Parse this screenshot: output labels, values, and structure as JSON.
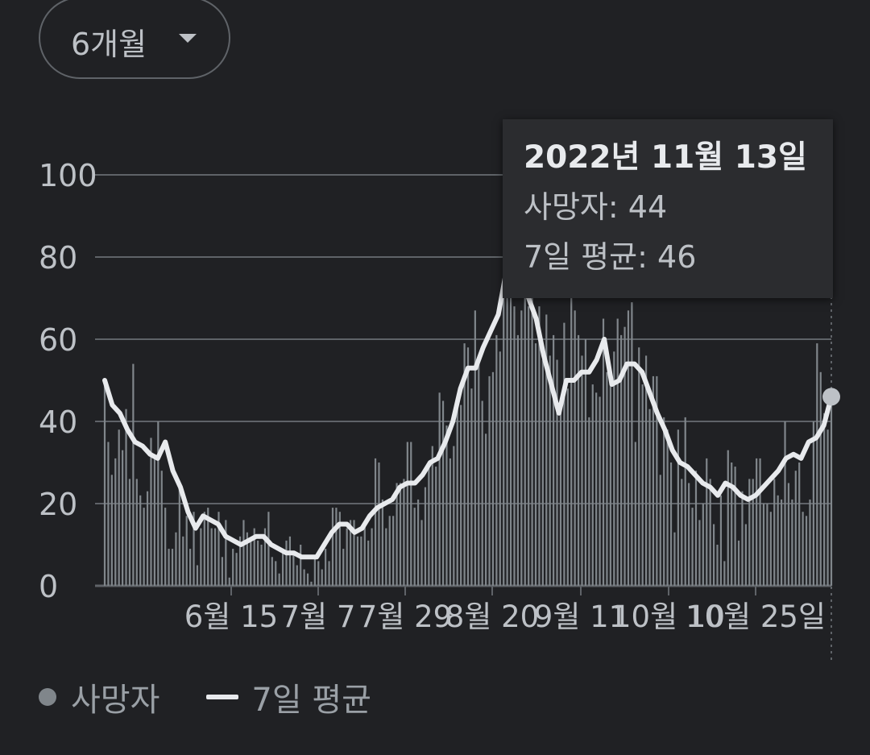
{
  "range_selector": {
    "label": "6개월"
  },
  "tooltip": {
    "date": "2022년 11월 13일",
    "deaths_label": "사망자: 44",
    "avg_label": "7일 평균: 46"
  },
  "legend": {
    "deaths": "사망자",
    "avg": "7일 평균"
  },
  "colors": {
    "background": "#202124",
    "bars": "#80868b",
    "avg_line": "#e8eaed",
    "grid": "#5f6368",
    "text": "#bdc1c6"
  },
  "chart_data": {
    "type": "bar",
    "ylim": [
      0,
      100
    ],
    "y_ticks": [
      "0",
      "20",
      "40",
      "60",
      "80",
      "100"
    ],
    "x_tick_labels": [
      "6월 15",
      "7월 7",
      "7월 29",
      "8월 20",
      "9월 11",
      "10월 10",
      "10월 25일"
    ],
    "grid": true,
    "legend_position": "bottom-left",
    "highlight": {
      "date": "2022년 11월 13일",
      "deaths": 44,
      "avg": 46
    },
    "series": [
      {
        "name": "사망자",
        "kind": "bar",
        "values": [
          50,
          35,
          27,
          31,
          38,
          33,
          43,
          26,
          54,
          26,
          22,
          19,
          23,
          36,
          32,
          40,
          28,
          19,
          9,
          9,
          13,
          25,
          12,
          17,
          9,
          18,
          5,
          14,
          18,
          19,
          14,
          14,
          18,
          7,
          16,
          2,
          9,
          8,
          12,
          16,
          13,
          11,
          14,
          11,
          10,
          14,
          18,
          7,
          6,
          3,
          8,
          11,
          12,
          8,
          5,
          10,
          4,
          3,
          1,
          7,
          6,
          4,
          9,
          6,
          19,
          19,
          18,
          9,
          14,
          16,
          16,
          12,
          12,
          15,
          11,
          14,
          31,
          30,
          21,
          14,
          17,
          17,
          25,
          25,
          26,
          35,
          35,
          19,
          21,
          16,
          24,
          29,
          34,
          29,
          47,
          45,
          39,
          31,
          34,
          46,
          44,
          59,
          58,
          48,
          67,
          54,
          45,
          37,
          51,
          52,
          61,
          57,
          83,
          84,
          78,
          68,
          61,
          67,
          71,
          68,
          70,
          59,
          68,
          55,
          66,
          56,
          61,
          55,
          45,
          64,
          48,
          71,
          67,
          61,
          56,
          60,
          41,
          49,
          47,
          46,
          65,
          52,
          51,
          57,
          65,
          61,
          63,
          67,
          69,
          35,
          58,
          49,
          56,
          43,
          51,
          51,
          27,
          41,
          38,
          30,
          13,
          38,
          26,
          41,
          25,
          19,
          28,
          16,
          20,
          31,
          26,
          15,
          10,
          22,
          6,
          33,
          30,
          29,
          11,
          23,
          15,
          26,
          26,
          31,
          31,
          20,
          20,
          18,
          26,
          22,
          21,
          40,
          25,
          21,
          28,
          30,
          18,
          17,
          21,
          40,
          59,
          52,
          42,
          38,
          44
        ],
        "color": "#80868b"
      },
      {
        "name": "7일 평균",
        "kind": "line",
        "values": [
          50,
          44,
          42,
          38,
          35,
          34,
          32,
          31,
          35,
          28,
          24,
          18,
          14,
          17,
          16,
          15,
          12,
          11,
          10,
          11,
          12,
          12,
          10,
          9,
          8,
          8,
          7,
          7,
          7,
          10,
          13,
          15,
          15,
          13,
          14,
          17,
          19,
          20,
          21,
          24,
          25,
          25,
          27,
          30,
          31,
          35,
          40,
          48,
          53,
          53,
          58,
          62,
          66,
          76,
          80,
          75,
          70,
          65,
          56,
          49,
          42,
          50,
          50,
          52,
          52,
          55,
          60,
          49,
          50,
          54,
          54,
          52,
          47,
          42,
          38,
          33,
          30,
          29,
          27,
          25,
          24,
          22,
          25,
          24,
          22,
          21,
          22,
          24,
          26,
          28,
          31,
          32,
          31,
          35,
          36,
          39,
          46
        ]
      }
    ]
  }
}
